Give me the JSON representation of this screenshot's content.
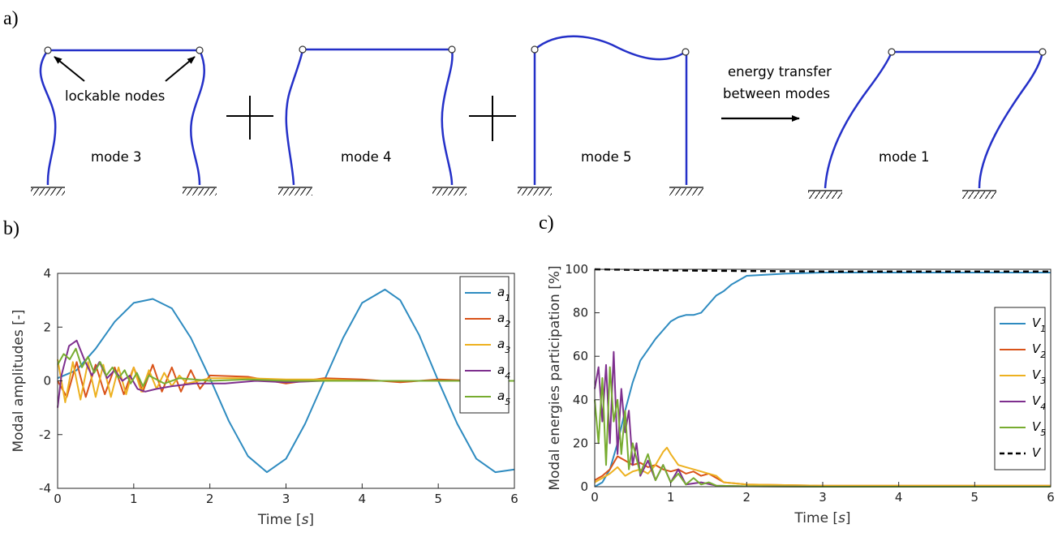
{
  "panels": {
    "a": {
      "label": "a)",
      "annotation_nodes": "lockable nodes",
      "transfer_line1": "energy transfer",
      "transfer_line2": "between modes",
      "modes": [
        "mode 3",
        "mode 4",
        "mode 5",
        "mode 1"
      ],
      "frame_color": "#2430c8"
    },
    "b": {
      "label": "b)"
    },
    "c": {
      "label": "c)"
    }
  },
  "chart_data": [
    {
      "type": "line",
      "panel": "b",
      "xlabel": "Time [s]",
      "ylabel": "Modal amplitudes [-]",
      "xlim": [
        0,
        6
      ],
      "ylim": [
        -4,
        4
      ],
      "xticks": [
        "0",
        "1",
        "2",
        "3",
        "4",
        "5",
        "6"
      ],
      "yticks": [
        "-4",
        "-2",
        "0",
        "2",
        "4"
      ],
      "grid": false,
      "legend_position": "top-right",
      "series": [
        {
          "name": "a1",
          "legend_main": "a",
          "legend_sub": "1",
          "color": "#2e8bc0",
          "x": [
            0,
            0.25,
            0.5,
            0.75,
            1.0,
            1.25,
            1.5,
            1.75,
            2.0,
            2.25,
            2.5,
            2.75,
            3.0,
            3.25,
            3.5,
            3.75,
            4.0,
            4.3,
            4.5,
            4.75,
            5.0,
            5.25,
            5.5,
            5.75,
            6.0
          ],
          "y": [
            0.1,
            0.4,
            1.2,
            2.2,
            2.9,
            3.05,
            2.7,
            1.6,
            0.1,
            -1.5,
            -2.8,
            -3.4,
            -2.9,
            -1.6,
            0.0,
            1.6,
            2.9,
            3.4,
            3.0,
            1.7,
            0.0,
            -1.6,
            -2.9,
            -3.4,
            -3.3
          ]
        },
        {
          "name": "a2",
          "legend_main": "a",
          "legend_sub": "2",
          "color": "#d95319",
          "x": [
            0,
            0.12,
            0.25,
            0.37,
            0.5,
            0.62,
            0.75,
            0.87,
            1.0,
            1.12,
            1.25,
            1.37,
            1.5,
            1.62,
            1.75,
            1.87,
            2.0,
            2.5,
            3.0,
            3.5,
            4.0,
            4.5,
            5.0,
            5.5,
            6.0
          ],
          "y": [
            0,
            -0.6,
            0.7,
            -0.6,
            0.6,
            -0.5,
            0.5,
            -0.5,
            0.5,
            -0.4,
            0.6,
            -0.4,
            0.5,
            -0.4,
            0.4,
            -0.3,
            0.2,
            0.15,
            -0.1,
            0.1,
            0.05,
            -0.05,
            0.05,
            0.0,
            0.0
          ]
        },
        {
          "name": "a3",
          "legend_main": "a",
          "legend_sub": "3",
          "color": "#edb120",
          "x": [
            0,
            0.1,
            0.2,
            0.3,
            0.4,
            0.5,
            0.6,
            0.7,
            0.8,
            0.9,
            1.0,
            1.1,
            1.2,
            1.3,
            1.4,
            1.5,
            1.6,
            1.7,
            2.0,
            2.5,
            3.0,
            3.5,
            4.0,
            5.0,
            6.0
          ],
          "y": [
            0.8,
            -0.8,
            0.7,
            -0.7,
            0.7,
            -0.6,
            0.6,
            -0.6,
            0.5,
            -0.5,
            0.5,
            -0.4,
            0.4,
            -0.3,
            0.3,
            -0.2,
            0.2,
            -0.1,
            0.1,
            0.1,
            0.05,
            0.05,
            0.0,
            0.0,
            0.0
          ]
        },
        {
          "name": "a4",
          "legend_main": "a",
          "legend_sub": "4",
          "color": "#7e2f8e",
          "x": [
            0,
            0.05,
            0.15,
            0.25,
            0.35,
            0.45,
            0.55,
            0.65,
            0.75,
            0.85,
            0.95,
            1.05,
            1.15,
            1.3,
            1.5,
            1.8,
            2.2,
            2.6,
            3.0,
            3.5,
            4.0,
            5.0,
            6.0
          ],
          "y": [
            -1.0,
            0.2,
            1.3,
            1.5,
            0.8,
            0.2,
            0.7,
            0.1,
            0.4,
            0.0,
            0.2,
            -0.3,
            -0.4,
            -0.3,
            -0.2,
            -0.1,
            -0.1,
            0.0,
            -0.05,
            0.0,
            0.0,
            0.0,
            0.0
          ]
        },
        {
          "name": "a5",
          "legend_main": "a",
          "legend_sub": "5",
          "color": "#77ac30",
          "x": [
            0,
            0.08,
            0.16,
            0.24,
            0.32,
            0.4,
            0.48,
            0.56,
            0.64,
            0.72,
            0.8,
            0.88,
            0.96,
            1.04,
            1.12,
            1.2,
            1.4,
            1.6,
            2.0,
            2.5,
            3.0,
            4.0,
            5.0,
            6.0
          ],
          "y": [
            0.6,
            1.0,
            0.8,
            1.2,
            0.5,
            0.9,
            0.3,
            0.7,
            0.2,
            0.5,
            0.1,
            0.4,
            -0.1,
            0.3,
            -0.2,
            0.2,
            -0.1,
            0.1,
            0.0,
            0.05,
            0.0,
            0.0,
            0.0,
            0.0
          ]
        }
      ]
    },
    {
      "type": "line",
      "panel": "c",
      "xlabel": "Time [s]",
      "ylabel": "Modal energies participation [%]",
      "xlim": [
        0,
        6
      ],
      "ylim": [
        0,
        100
      ],
      "xticks": [
        "0",
        "1",
        "2",
        "3",
        "4",
        "5",
        "6"
      ],
      "yticks": [
        "0",
        "20",
        "40",
        "60",
        "80",
        "100"
      ],
      "grid": false,
      "legend_position": "right",
      "series": [
        {
          "name": "V1",
          "legend_main": "V",
          "legend_sub": "1",
          "color": "#2e8bc0",
          "x": [
            0,
            0.1,
            0.2,
            0.3,
            0.4,
            0.5,
            0.6,
            0.7,
            0.8,
            0.9,
            1.0,
            1.1,
            1.2,
            1.3,
            1.4,
            1.5,
            1.6,
            1.7,
            1.8,
            1.9,
            2.0,
            2.5,
            3.0,
            4.0,
            5.0,
            6.0
          ],
          "y": [
            0,
            2,
            8,
            20,
            35,
            48,
            58,
            63,
            68,
            72,
            76,
            78,
            79,
            79,
            80,
            84,
            88,
            90,
            93,
            95,
            97,
            98,
            98.5,
            98.5,
            98.5,
            98.5
          ]
        },
        {
          "name": "V2",
          "legend_main": "V",
          "legend_sub": "2",
          "color": "#d95319",
          "x": [
            0,
            0.1,
            0.2,
            0.3,
            0.4,
            0.5,
            0.6,
            0.7,
            0.8,
            0.9,
            1.0,
            1.1,
            1.2,
            1.3,
            1.4,
            1.5,
            1.6,
            1.7,
            2.0,
            3.0,
            6.0
          ],
          "y": [
            3,
            5,
            8,
            14,
            12,
            10,
            11,
            9,
            10,
            8,
            7,
            8,
            6,
            7,
            5,
            6,
            4,
            2,
            1,
            0.5,
            0.5
          ]
        },
        {
          "name": "V3",
          "legend_main": "V",
          "legend_sub": "3",
          "color": "#edb120",
          "x": [
            0,
            0.1,
            0.2,
            0.3,
            0.4,
            0.5,
            0.6,
            0.7,
            0.8,
            0.9,
            0.95,
            1.0,
            1.1,
            1.2,
            1.3,
            1.4,
            1.5,
            1.6,
            1.7,
            2.0,
            3.0,
            6.0
          ],
          "y": [
            2,
            4,
            6,
            9,
            5,
            7,
            8,
            6,
            10,
            16,
            18,
            15,
            10,
            9,
            8,
            7,
            6,
            5,
            2,
            1,
            0.5,
            0.5
          ]
        },
        {
          "name": "V4",
          "legend_main": "V",
          "legend_sub": "4",
          "color": "#7e2f8e",
          "x": [
            0,
            0.05,
            0.1,
            0.15,
            0.2,
            0.25,
            0.3,
            0.35,
            0.4,
            0.45,
            0.5,
            0.55,
            0.6,
            0.7,
            0.8,
            0.9,
            1.0,
            1.1,
            1.2,
            1.4,
            1.6,
            2.0,
            3.0,
            6.0
          ],
          "y": [
            45,
            55,
            30,
            56,
            20,
            62,
            15,
            45,
            25,
            35,
            10,
            20,
            5,
            12,
            3,
            10,
            2,
            8,
            1,
            2,
            0.5,
            0.2,
            0,
            0
          ]
        },
        {
          "name": "V5",
          "legend_main": "V",
          "legend_sub": "5",
          "color": "#77ac30",
          "x": [
            0,
            0.05,
            0.1,
            0.15,
            0.2,
            0.25,
            0.3,
            0.35,
            0.4,
            0.45,
            0.5,
            0.6,
            0.7,
            0.8,
            0.9,
            1.0,
            1.1,
            1.2,
            1.3,
            1.4,
            1.5,
            1.6,
            2.0,
            3.0,
            6.0
          ],
          "y": [
            40,
            20,
            50,
            10,
            55,
            30,
            40,
            15,
            35,
            8,
            20,
            6,
            15,
            3,
            10,
            2,
            6,
            1,
            4,
            1,
            2,
            0.5,
            0.2,
            0,
            0
          ]
        },
        {
          "name": "V",
          "legend_main": "V",
          "legend_sub": "",
          "color": "#000000",
          "dashed": true,
          "x": [
            0,
            1,
            2,
            3,
            4,
            5,
            6
          ],
          "y": [
            100,
            99.5,
            99.2,
            99,
            99,
            99,
            99
          ]
        }
      ]
    }
  ]
}
